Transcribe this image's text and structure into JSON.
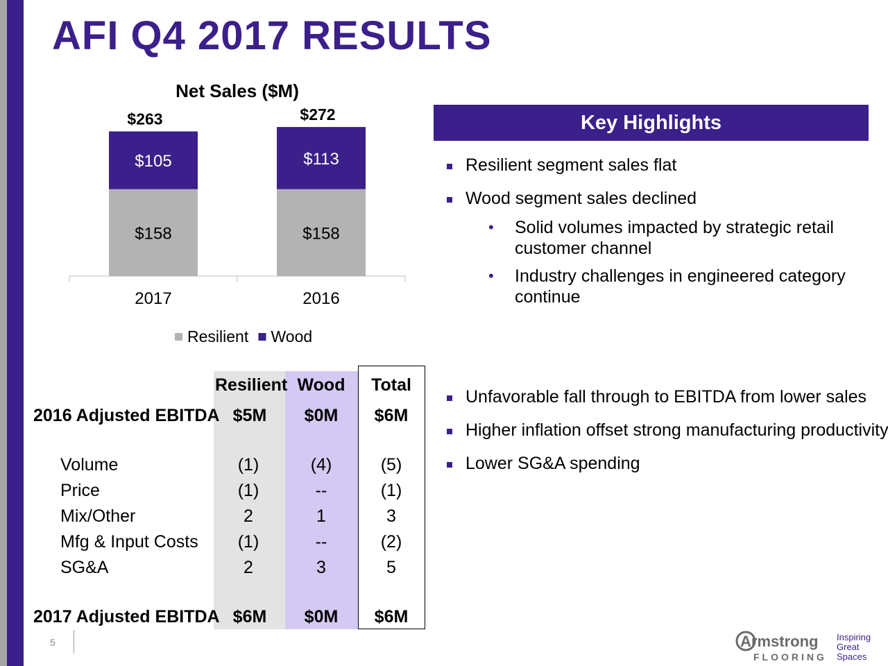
{
  "slide": {
    "title": "AFI Q4 2017 RESULTS",
    "page_number": "5"
  },
  "chart_data": {
    "type": "bar",
    "stacked": true,
    "title": "Net Sales ($M)",
    "categories": [
      "2017",
      "2016"
    ],
    "series": [
      {
        "name": "Resilient",
        "values": [
          158,
          158
        ],
        "labels": [
          "$158",
          "$158"
        ],
        "color": "#b3b3b3"
      },
      {
        "name": "Wood",
        "values": [
          105,
          113
        ],
        "labels": [
          "$105",
          "$113"
        ],
        "color": "#3b1f8a"
      }
    ],
    "totals": [
      263,
      272
    ],
    "total_labels": [
      "$263",
      "$272"
    ],
    "legend": [
      "Resilient",
      "Wood"
    ],
    "legend_position": "bottom",
    "ylim": [
      0,
      290
    ],
    "grid": false
  },
  "highlights": {
    "header": "Key Highlights",
    "bullets_top": [
      "Resilient segment sales flat",
      "Wood segment sales declined"
    ],
    "sub_bullets": [
      {
        "line1": "Solid volumes impacted by strategic retail",
        "line2": "customer channel"
      },
      {
        "line1": "Industry challenges in engineered category",
        "line2": "continue"
      }
    ],
    "bullets_bottom": [
      "Unfavorable fall through to EBITDA from lower sales",
      "Higher inflation offset strong manufacturing productivity",
      "Lower SG&A spending"
    ]
  },
  "bridge": {
    "headers": [
      "Resilient",
      "Wood",
      "Total"
    ],
    "start": {
      "label": "2016 Adjusted EBITDA",
      "values": [
        "$5M",
        "$0M",
        "$6M"
      ]
    },
    "rows": [
      {
        "label": "Volume",
        "values": [
          "(1)",
          "(4)",
          "(5)"
        ]
      },
      {
        "label": "Price",
        "values": [
          "(1)",
          "--",
          "(1)"
        ]
      },
      {
        "label": "Mix/Other",
        "values": [
          "2",
          "1",
          "3"
        ]
      },
      {
        "label": "Mfg & Input Costs",
        "values": [
          "(1)",
          "--",
          "(2)"
        ]
      },
      {
        "label": "SG&A",
        "values": [
          "2",
          "3",
          "5"
        ]
      }
    ],
    "end": {
      "label": "2017 Adjusted EBITDA",
      "values": [
        "$6M",
        "$0M",
        "$6M"
      ]
    }
  },
  "logo": {
    "brand": "Armstrong",
    "sub": "FLOORING",
    "tagline": [
      "Inspiring",
      "Great",
      "Spaces"
    ]
  },
  "colors": {
    "accent": "#3b1f8a",
    "resilient": "#b3b3b3",
    "wood_col": "#d3c9f2",
    "resilient_col": "#e3e3e3"
  }
}
